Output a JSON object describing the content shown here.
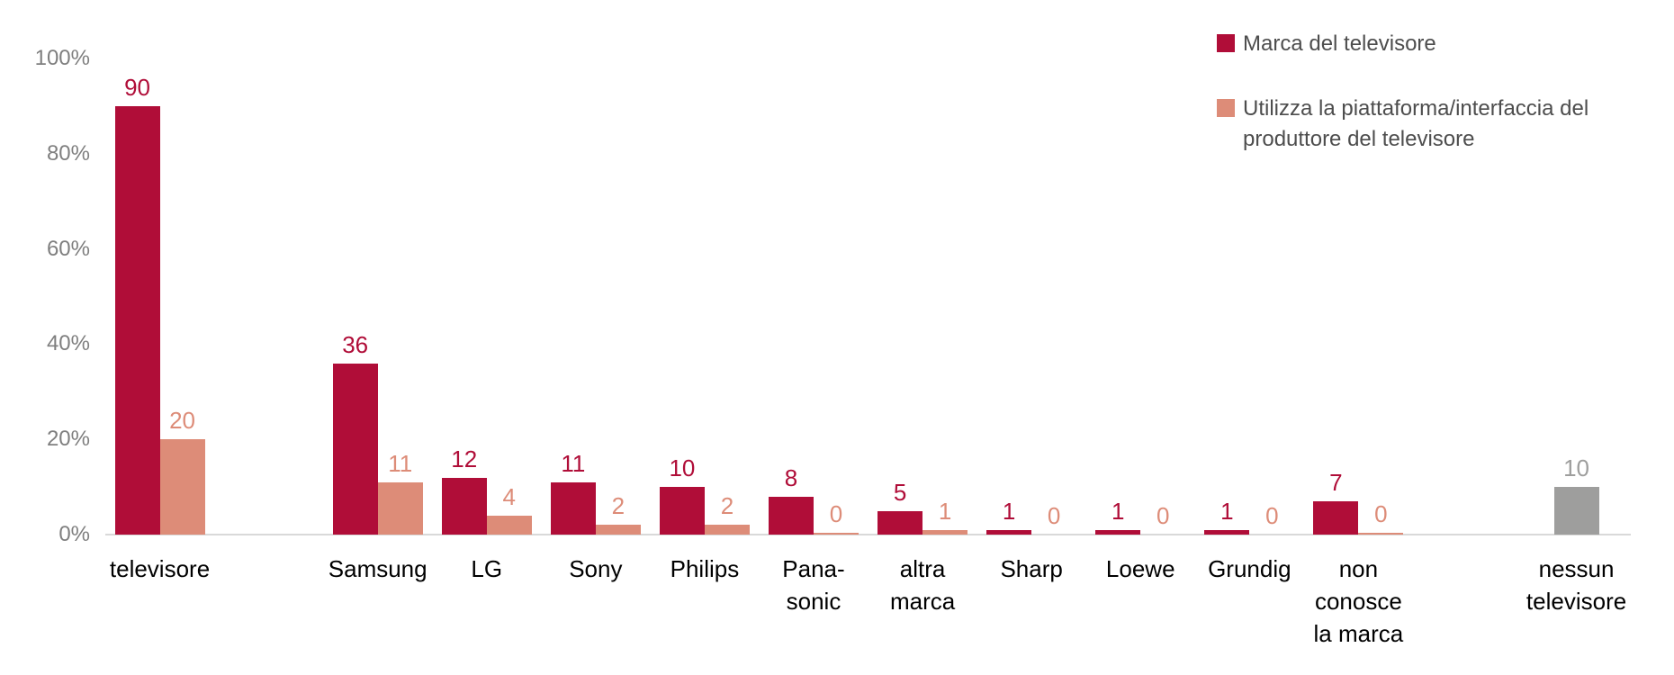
{
  "legend": {
    "text_color": "#4D4D4D",
    "items": [
      {
        "label": "Marca del televisore",
        "color": "#B00D38"
      },
      {
        "label": "Utilizza la piattaforma/interfaccia del\nproduttore del televisore",
        "color": "#DD8C78"
      }
    ]
  },
  "chart_data": {
    "type": "bar",
    "title": "",
    "xlabel": "",
    "ylabel": "",
    "ylim": [
      0,
      100
    ],
    "grid": false,
    "legend_position": "top-right",
    "axis_line_color": "#D9D9D9",
    "tick_label_color": "#7F7F7F",
    "category_label_color": "#000000",
    "y_ticks": [
      {
        "label": "0%",
        "value": 0
      },
      {
        "label": "20%",
        "value": 20
      },
      {
        "label": "40%",
        "value": 40
      },
      {
        "label": "60%",
        "value": 60
      },
      {
        "label": "80%",
        "value": 80
      },
      {
        "label": "100%",
        "value": 100
      }
    ],
    "series": [
      {
        "name": "Marca del televisore",
        "color": "#B00D38"
      },
      {
        "name": "Utilizza la piattaforma/interfaccia del produttore del televisore",
        "color": "#DD8C78"
      }
    ],
    "categories": [
      {
        "label": "televisore",
        "values": [
          90,
          20
        ],
        "spacer_after": true
      },
      {
        "label": "Samsung",
        "values": [
          36,
          11
        ]
      },
      {
        "label": "LG",
        "values": [
          12,
          4
        ]
      },
      {
        "label": "Sony",
        "values": [
          11,
          2
        ]
      },
      {
        "label": "Philips",
        "values": [
          10,
          2
        ]
      },
      {
        "label": "Pana-\nsonic",
        "values": [
          8,
          0
        ],
        "zero_sliver": [
          false,
          true
        ]
      },
      {
        "label": "altra\nmarca",
        "values": [
          5,
          1
        ]
      },
      {
        "label": "Sharp",
        "values": [
          1,
          0
        ]
      },
      {
        "label": "Loewe",
        "values": [
          1,
          0
        ]
      },
      {
        "label": "Grundig",
        "values": [
          1,
          0
        ]
      },
      {
        "label": "non\nconosce\nla marca",
        "values": [
          7,
          0
        ],
        "zero_sliver": [
          false,
          true
        ],
        "spacer_after": true
      },
      {
        "label": "nessun\ntelevisore",
        "values": [
          10,
          null
        ],
        "bar_color": "#9E9E9D",
        "value_color": "#9E9E9D"
      }
    ]
  }
}
